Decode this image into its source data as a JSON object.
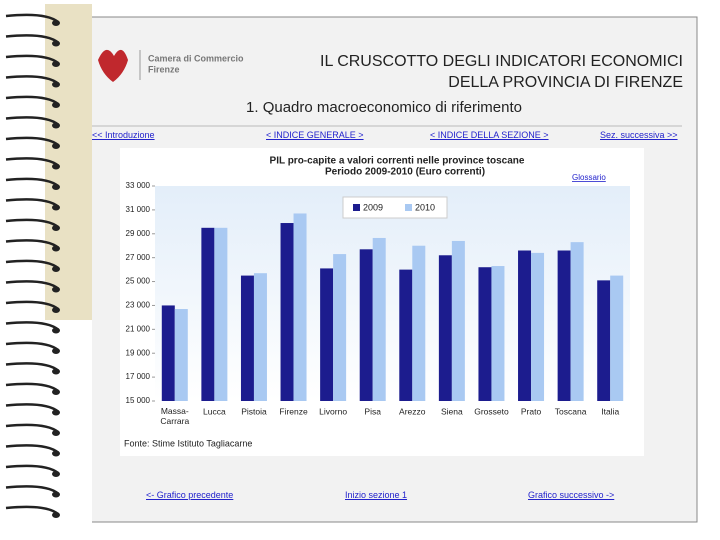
{
  "header": {
    "logo_line1": "Camera di Commercio",
    "logo_line2": "Firenze",
    "title_line1": "IL CRUSCOTTO DEGLI INDICATORI ECONOMICI",
    "title_line2": "DELLA PROVINCIA DI FIRENZE",
    "section": "1. Quadro macroeconomico di riferimento"
  },
  "nav": {
    "intro": "<< Introduzione",
    "general_index": "< INDICE GENERALE >",
    "section_index": "< INDICE DELLA SEZIONE >",
    "next_section": "Sez. successiva >>"
  },
  "footer_nav": {
    "prev": "<- Grafico precedente",
    "start": "Inizio sezione 1",
    "next": "Grafico successivo ->"
  },
  "chart_data": {
    "type": "bar",
    "title": "PIL pro-capite a valori correnti nelle province toscane",
    "subtitle": "Periodo 2009-2010 (Euro correnti)",
    "glossary": "Glossario",
    "source": "Fonte: Stime Istituto Tagliacarne",
    "categories": [
      "Massa-Carrara",
      "Lucca",
      "Pistoia",
      "Firenze",
      "Livorno",
      "Pisa",
      "Arezzo",
      "Siena",
      "Grosseto",
      "Prato",
      "Toscana",
      "Italia"
    ],
    "series": [
      {
        "name": "2009",
        "color": "#1c1c8e",
        "values": [
          23000,
          29500,
          25500,
          29900,
          26100,
          27700,
          26000,
          27200,
          26200,
          27600,
          27600,
          25100
        ]
      },
      {
        "name": "2010",
        "color": "#a9c9f2",
        "values": [
          22700,
          29500,
          25700,
          30700,
          27300,
          28650,
          28000,
          28400,
          26300,
          27400,
          28300,
          25500
        ]
      }
    ],
    "ylim": [
      15000,
      33000
    ],
    "yticks": [
      {
        "value": 15000,
        "label": "15 000"
      },
      {
        "value": 17000,
        "label": "17 000"
      },
      {
        "value": 19000,
        "label": "19 000"
      },
      {
        "value": 21000,
        "label": "21 000"
      },
      {
        "value": 23000,
        "label": "23 000"
      },
      {
        "value": 25000,
        "label": "25 000"
      },
      {
        "value": 27000,
        "label": "27 000"
      },
      {
        "value": 29000,
        "label": "29 000"
      },
      {
        "value": 31000,
        "label": "31 000"
      },
      {
        "value": 33000,
        "label": "33 000"
      }
    ],
    "grid": false
  }
}
